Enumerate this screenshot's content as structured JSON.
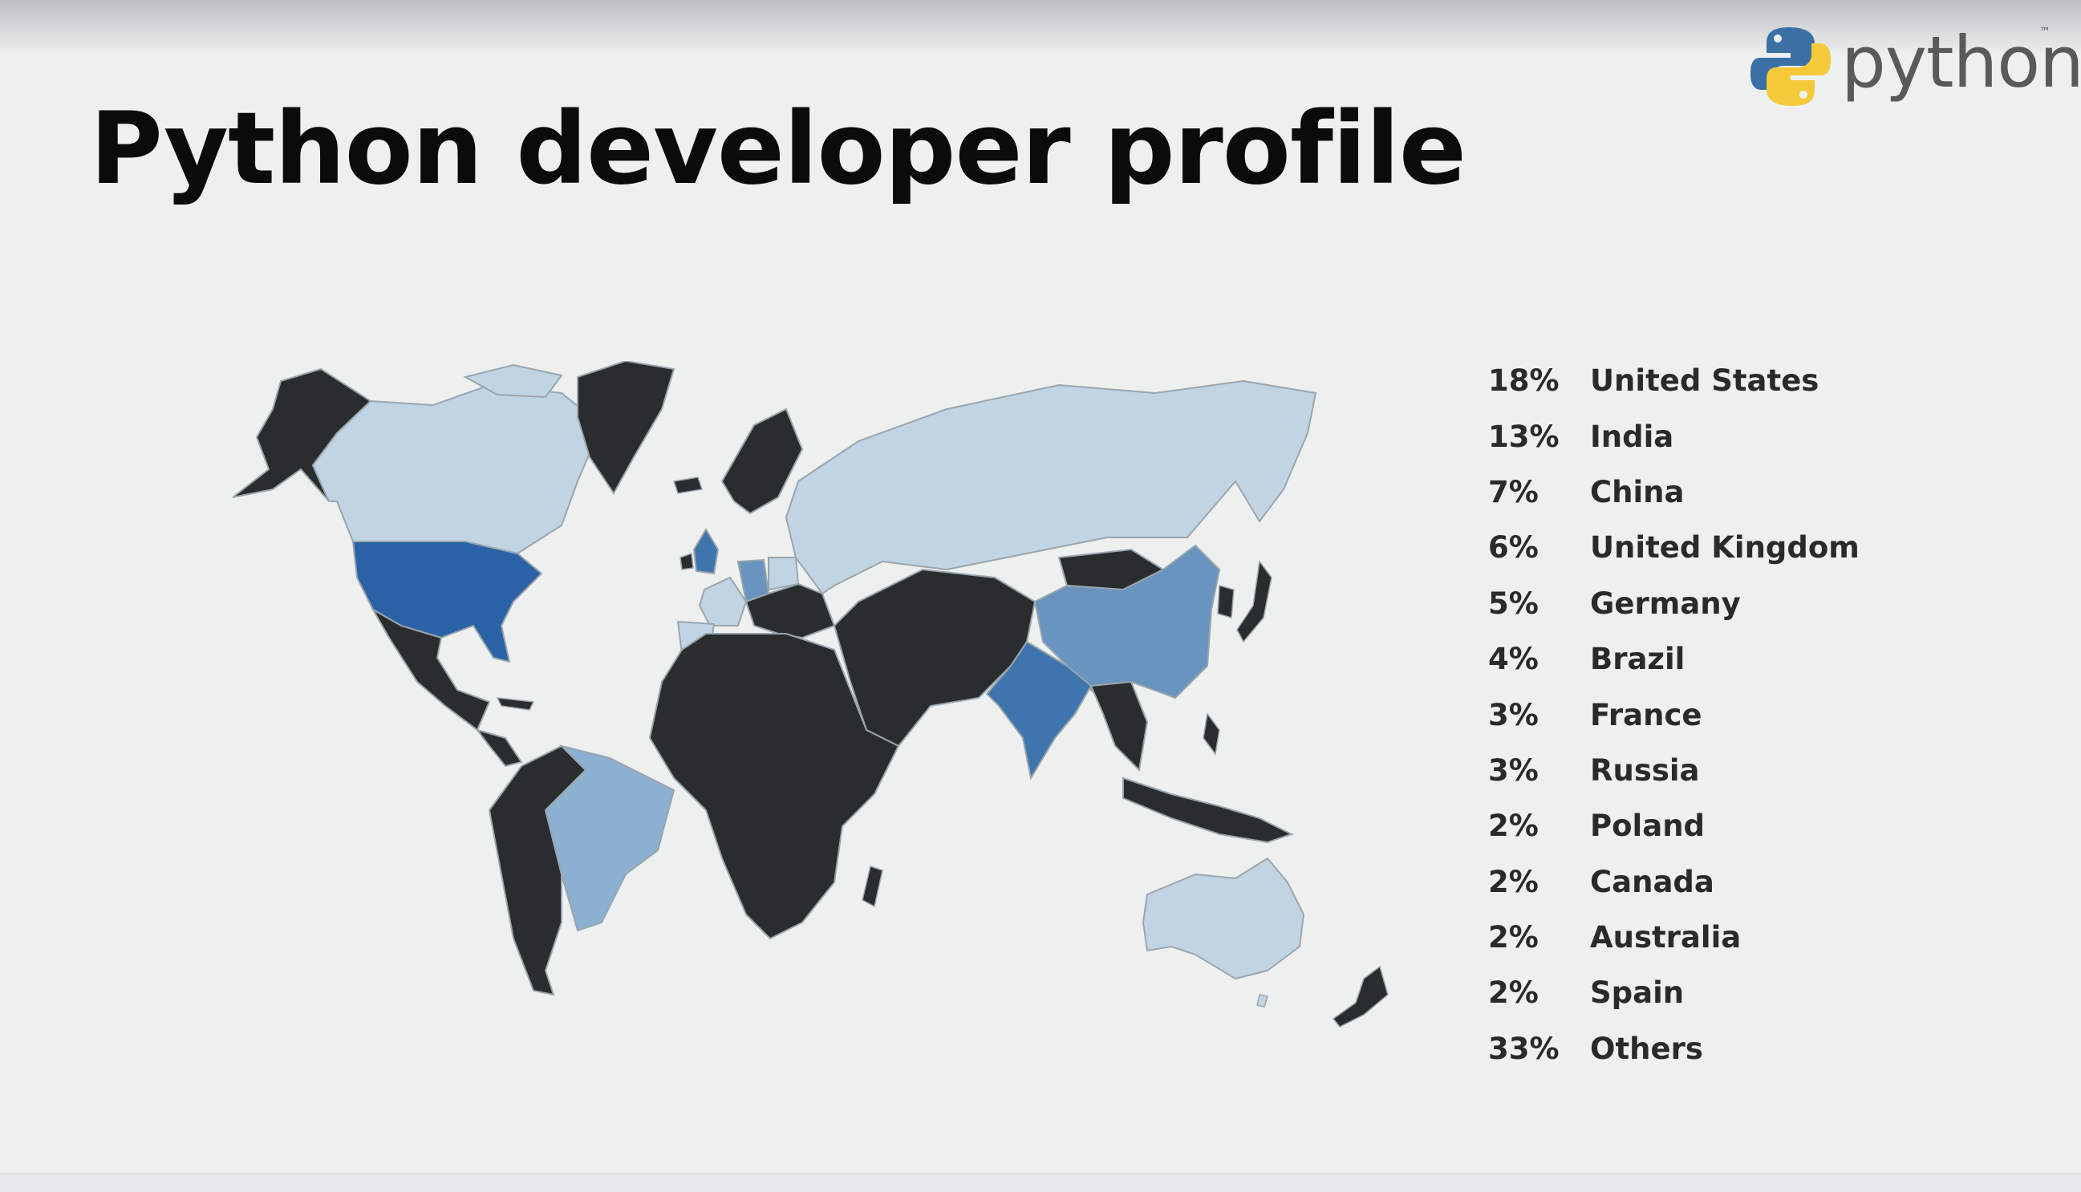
{
  "slide": {
    "title": "Python developer profile"
  },
  "logo": {
    "wordmark": "python",
    "trademark": "™"
  },
  "map": {
    "colors": {
      "highest": "#2a62a5",
      "high": "#3e75ac",
      "medium": "#6894bf",
      "low": "#8cb0d1",
      "lowest": "#c1d4e4",
      "others": "#2a2d2e",
      "border": "#9aa5ad"
    }
  },
  "legend": {
    "rows": [
      {
        "percent": "18%",
        "country": "United States"
      },
      {
        "percent": "13%",
        "country": "India"
      },
      {
        "percent": "7%",
        "country": "China"
      },
      {
        "percent": "6%",
        "country": "United Kingdom"
      },
      {
        "percent": "5%",
        "country": "Germany"
      },
      {
        "percent": "4%",
        "country": "Brazil"
      },
      {
        "percent": "3%",
        "country": "France"
      },
      {
        "percent": "3%",
        "country": "Russia"
      },
      {
        "percent": "2%",
        "country": "Poland"
      },
      {
        "percent": "2%",
        "country": "Canada"
      },
      {
        "percent": "2%",
        "country": "Australia"
      },
      {
        "percent": "2%",
        "country": "Spain"
      },
      {
        "percent": "33%",
        "country": "Others"
      }
    ]
  }
}
